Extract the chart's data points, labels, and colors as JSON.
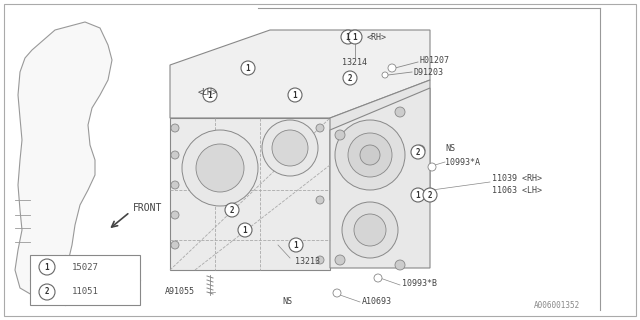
{
  "bg_color": "#ffffff",
  "line_color": "#999999",
  "text_color": "#555555",
  "dark_color": "#444444",
  "part_number_bottom_right": "A006001352",
  "legend": [
    {
      "symbol": "1",
      "part": "15027"
    },
    {
      "symbol": "2",
      "part": "11051"
    }
  ],
  "fig_width": 6.4,
  "fig_height": 3.2,
  "dpi": 100
}
